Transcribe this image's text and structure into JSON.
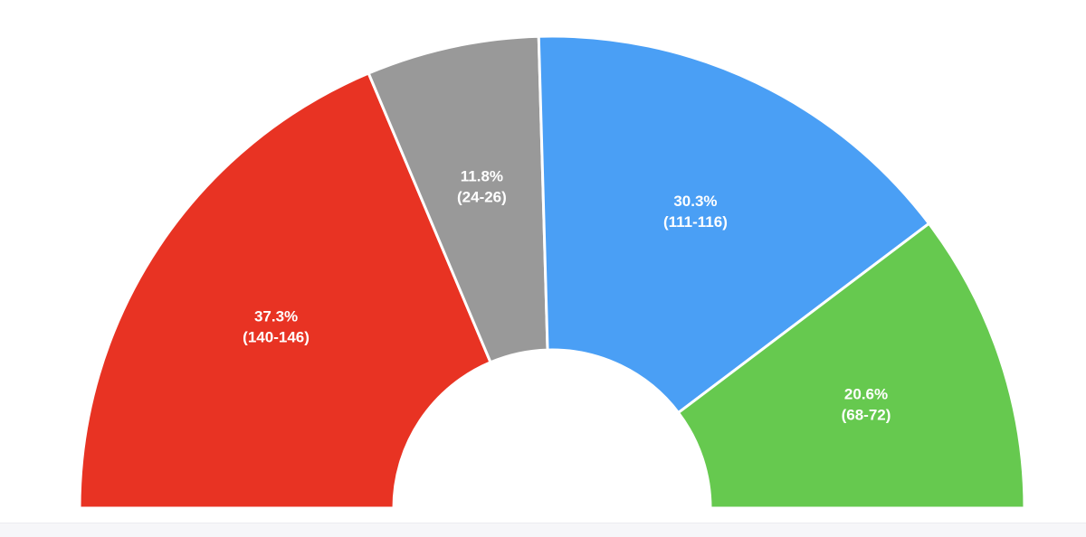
{
  "chart_data": {
    "type": "pie",
    "subtype": "semicircle-parliament",
    "title": "",
    "legend": "none",
    "slices": [
      {
        "value_pct": 37.3,
        "label": "37.3%",
        "range": "(140-146)",
        "color": "#e83323"
      },
      {
        "value_pct": 11.8,
        "label": "11.8%",
        "range": "(24-26)",
        "color": "#999999"
      },
      {
        "value_pct": 30.3,
        "label": "30.3%",
        "range": "(111-116)",
        "color": "#4a9ff5"
      },
      {
        "value_pct": 20.6,
        "label": "20.6%",
        "range": "(68-72)",
        "color": "#66c94f"
      }
    ],
    "seat_ranges": [
      [
        140,
        146
      ],
      [
        24,
        26
      ],
      [
        111,
        116
      ],
      [
        68,
        72
      ]
    ]
  }
}
